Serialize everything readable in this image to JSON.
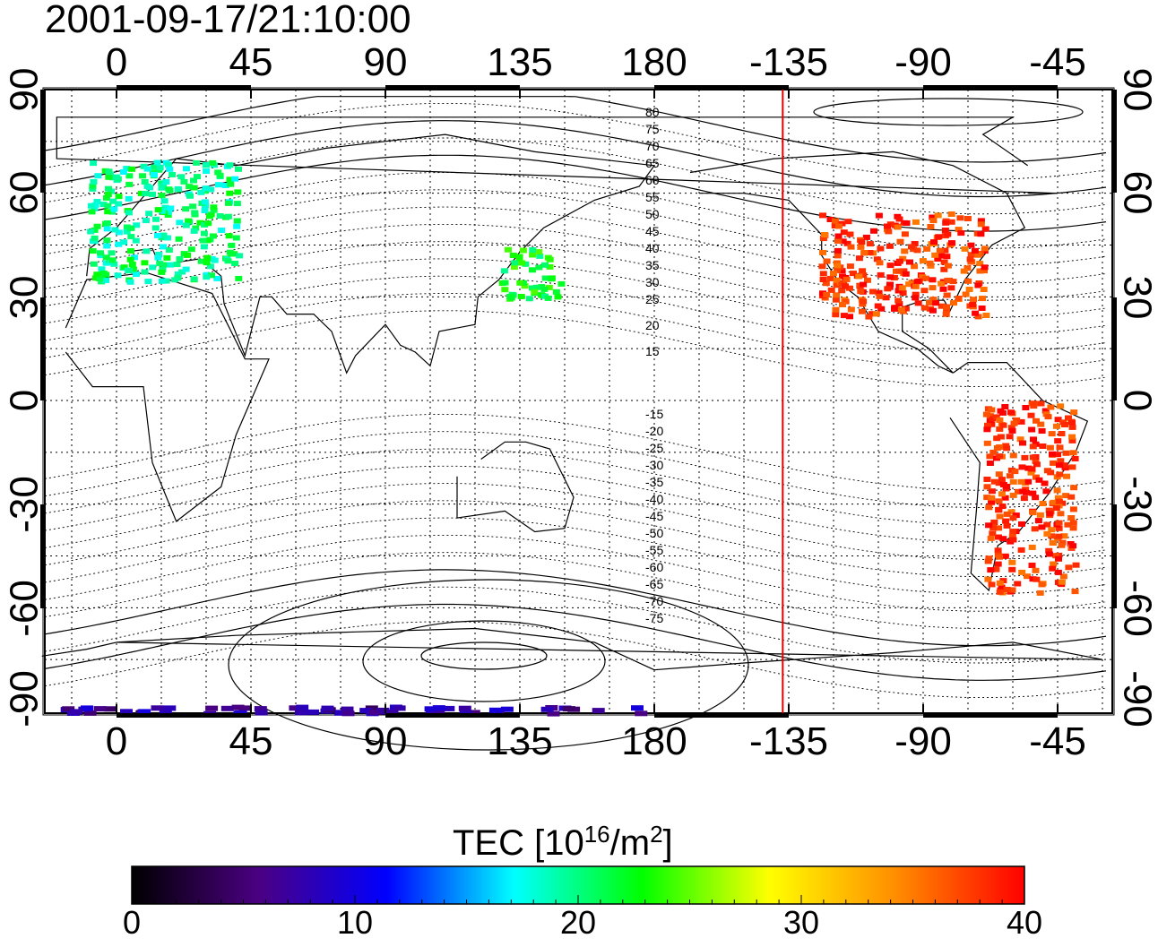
{
  "title": "2001-09-17/21:10:00",
  "map": {
    "x_ticks": [
      "0",
      "45",
      "90",
      "135",
      "180",
      "-135",
      "-90",
      "-45"
    ],
    "y_ticks": [
      "90",
      "60",
      "30",
      "0",
      "-30",
      "-60",
      "-90"
    ],
    "contour_labels_north": [
      "80",
      "75",
      "70",
      "65",
      "60",
      "55",
      "50",
      "45",
      "40",
      "35",
      "30",
      "25",
      "20",
      "15"
    ],
    "contour_labels_south": [
      "-15",
      "-20",
      "-25",
      "-30",
      "-35",
      "-40",
      "-45",
      "-50",
      "-55",
      "-60",
      "-65",
      "-70",
      "-75"
    ],
    "meridian_marker": {
      "longitude": -137,
      "color": "#e00000"
    }
  },
  "colorbar": {
    "title_main": "TEC  [10",
    "title_sup1": "16",
    "title_mid": "/m",
    "title_sup2": "2",
    "title_end": "]",
    "ticks": [
      "0",
      "10",
      "20",
      "30",
      "40"
    ],
    "min": 0,
    "max": 40,
    "stops": [
      "#000000",
      "#4b0082",
      "#0000ff",
      "#00ffff",
      "#00ff00",
      "#ffff00",
      "#ff8c00",
      "#ff0000"
    ]
  },
  "tec_regions": [
    {
      "name": "north-america",
      "lon": [
        -125,
        -70
      ],
      "lat": [
        25,
        55
      ],
      "tec": 38
    },
    {
      "name": "europe",
      "lon": [
        -10,
        40
      ],
      "lat": [
        35,
        70
      ],
      "tec": 20
    },
    {
      "name": "japan",
      "lon": [
        128,
        148
      ],
      "lat": [
        30,
        45
      ],
      "tec": 22
    },
    {
      "name": "south-america",
      "lon": [
        -70,
        -40
      ],
      "lat": [
        -55,
        0
      ],
      "tec": 38
    },
    {
      "name": "antarctica-strip",
      "lon": [
        -25,
        180
      ],
      "lat": [
        -90,
        -88
      ],
      "tec": 7
    }
  ]
}
